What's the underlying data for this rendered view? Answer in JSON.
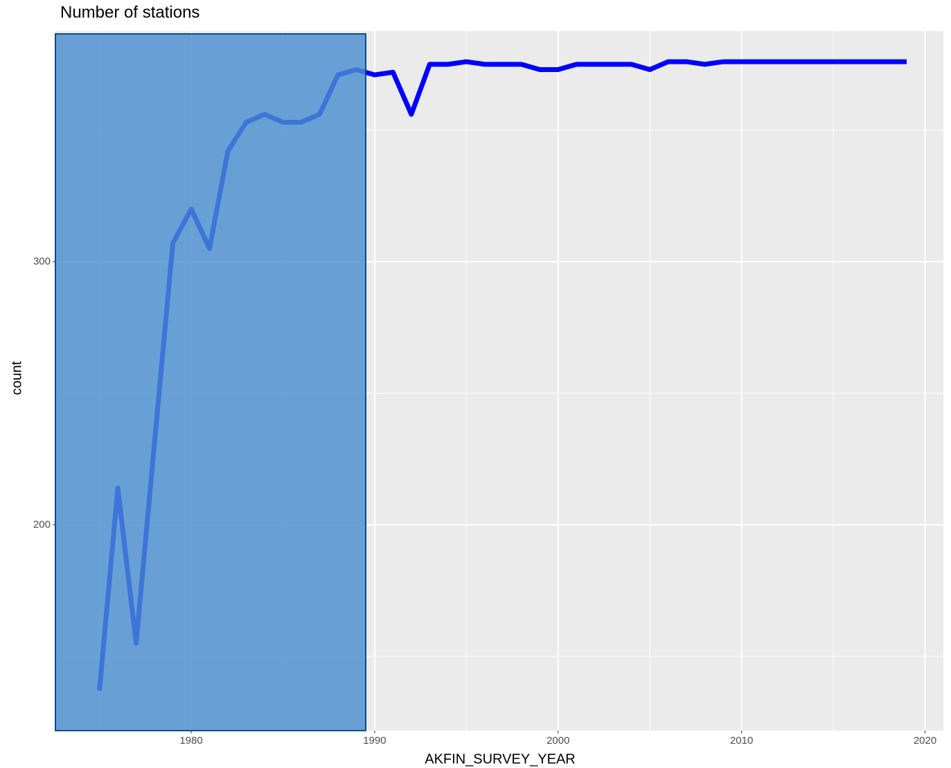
{
  "chart_data": {
    "type": "line",
    "title": "Number of stations",
    "x_label": "AKFIN_SURVEY_YEAR",
    "y_label": "count",
    "x": [
      1975,
      1976,
      1977,
      1978,
      1979,
      1980,
      1981,
      1982,
      1983,
      1984,
      1985,
      1986,
      1987,
      1988,
      1989,
      1990,
      1991,
      1992,
      1993,
      1994,
      1995,
      1996,
      1997,
      1998,
      1999,
      2000,
      2001,
      2002,
      2003,
      2004,
      2005,
      2006,
      2007,
      2008,
      2009,
      2010,
      2011,
      2012,
      2013,
      2014,
      2015,
      2016,
      2017,
      2018,
      2019
    ],
    "series": [
      {
        "color": "#0000ff",
        "values": [
          137,
          214,
          155,
          231,
          307,
          320,
          305,
          342,
          353,
          356,
          353,
          353,
          356,
          371,
          373,
          371,
          372,
          356,
          375,
          375,
          376,
          375,
          375,
          375,
          373,
          373,
          375,
          375,
          375,
          375,
          373,
          376,
          376,
          375,
          376,
          376,
          376,
          376,
          376,
          376,
          376,
          376,
          376,
          376,
          376
        ]
      }
    ],
    "xlim": [
      1972.6,
      2021.0
    ],
    "ylim": [
      121.8,
      387.6
    ],
    "xticks": [
      1980,
      1990,
      2000,
      2010,
      2020
    ],
    "yticks": [
      200,
      300
    ],
    "x_minor_ticks": [
      1975,
      1985,
      1995,
      2005,
      2015
    ],
    "y_minor_ticks": [
      150,
      250,
      350
    ],
    "grid": true
  }
}
